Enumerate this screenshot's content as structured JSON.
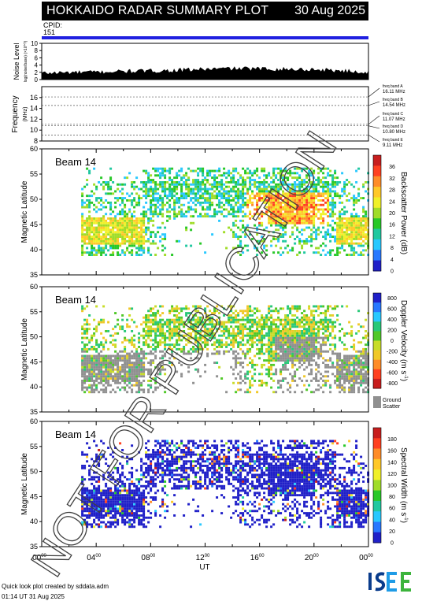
{
  "header": {
    "title": "HOKKAIDO RADAR SUMMARY PLOT",
    "date": "30 Aug 2025"
  },
  "cpid": {
    "label": "CPID:",
    "value": "151"
  },
  "watermark": "NOT FOR PUBLICATION",
  "colors": {
    "cpid_bar": "#2020e0",
    "ground_scatter": "#909090"
  },
  "chart_data": [
    {
      "type": "area",
      "id": "noise",
      "ylabel": "Noise Level",
      "ylabel_sub": "log(noise/base) (×10^?)",
      "ylim": [
        0,
        10
      ],
      "yticks": [
        "0",
        "2",
        "4",
        "6",
        "8",
        "10"
      ],
      "x": [
        0,
        2,
        4,
        6,
        8,
        10,
        12,
        14,
        16,
        18,
        20,
        22,
        24
      ],
      "values": [
        1.8,
        2.0,
        2.1,
        2.3,
        2.4,
        2.6,
        2.9,
        3.1,
        3.0,
        2.9,
        2.8,
        2.5,
        2.0
      ]
    },
    {
      "type": "line",
      "id": "frequency",
      "ylabel": "Frequency",
      "yunit": "(MHz)",
      "ylim": [
        8,
        18
      ],
      "yticks": [
        "8",
        "10",
        "12",
        "14",
        "16"
      ],
      "bands": [
        {
          "name": "freq band A",
          "value": 16.11,
          "label": "16.11 MHz"
        },
        {
          "name": "freq band B",
          "value": 14.54,
          "label": "14.54 MHz"
        },
        {
          "name": "freq band C",
          "value": 11.07,
          "label": "11.07 MHz"
        },
        {
          "name": "freq band D",
          "value": 10.8,
          "label": "10.80 MHz"
        },
        {
          "name": "freq band E",
          "value": 9.11,
          "label": "9.11 MHz"
        }
      ]
    },
    {
      "type": "heatmap",
      "id": "power",
      "beam_label": "Beam 14",
      "ylabel": "Magnetic Latitude",
      "ylim": [
        35,
        60
      ],
      "yticks": [
        "35",
        "40",
        "45",
        "50",
        "55",
        "60"
      ],
      "colorbar": {
        "label": "Backscatter Power (dB)",
        "ticks": [
          "0",
          "4",
          "8",
          "12",
          "16",
          "20",
          "24",
          "28",
          "32",
          "36"
        ],
        "colors": [
          "#2020c8",
          "#2878ff",
          "#28c8ff",
          "#20c8a0",
          "#28c828",
          "#a0dc28",
          "#f0f028",
          "#ffc828",
          "#ff8c28",
          "#ff4020",
          "#c81e1e"
        ]
      }
    },
    {
      "type": "heatmap",
      "id": "velocity",
      "beam_label": "Beam 14",
      "ylabel": "Magnetic Latitude",
      "ylim": [
        35,
        60
      ],
      "yticks": [
        "35",
        "40",
        "45",
        "50",
        "55",
        "60"
      ],
      "colorbar": {
        "label": "Doppler Velocity (m s",
        "label_sup": "-1",
        "ticks": [
          "800",
          "600",
          "400",
          "200",
          "0",
          "-200",
          "-400",
          "-600",
          "-800"
        ],
        "colors": [
          "#2020c8",
          "#2878ff",
          "#28c8ff",
          "#28c878",
          "#50c828",
          "#c8dc28",
          "#f0c828",
          "#ff8c28",
          "#ff4020",
          "#c81e1e"
        ],
        "ground_scatter_label": "Ground Scatter"
      }
    },
    {
      "type": "heatmap",
      "id": "width",
      "beam_label": "Beam 14",
      "ylabel": "Magnetic Latitude",
      "ylim": [
        35,
        60
      ],
      "yticks": [
        "35",
        "40",
        "45",
        "50",
        "55",
        "60"
      ],
      "xlabel": "UT",
      "xticks": [
        "00",
        "04",
        "08",
        "12",
        "16",
        "20",
        "00"
      ],
      "xtick_sup": "00",
      "colorbar": {
        "label": "Spectral Width (m s",
        "label_sup": "-1",
        "ticks": [
          "0",
          "20",
          "40",
          "60",
          "80",
          "100",
          "120",
          "140",
          "160",
          "180"
        ],
        "colors": [
          "#2020c8",
          "#2878ff",
          "#28c8ff",
          "#20c8a0",
          "#28c828",
          "#a0dc28",
          "#f0f028",
          "#ffc828",
          "#ff8c28",
          "#ff4020",
          "#c81e1e"
        ]
      }
    }
  ],
  "credit": {
    "line1": "Quick look plot created by sddata.adm",
    "line2": "01:14 UT 31 Aug 2025"
  },
  "logo": {
    "text": "ISEE"
  }
}
